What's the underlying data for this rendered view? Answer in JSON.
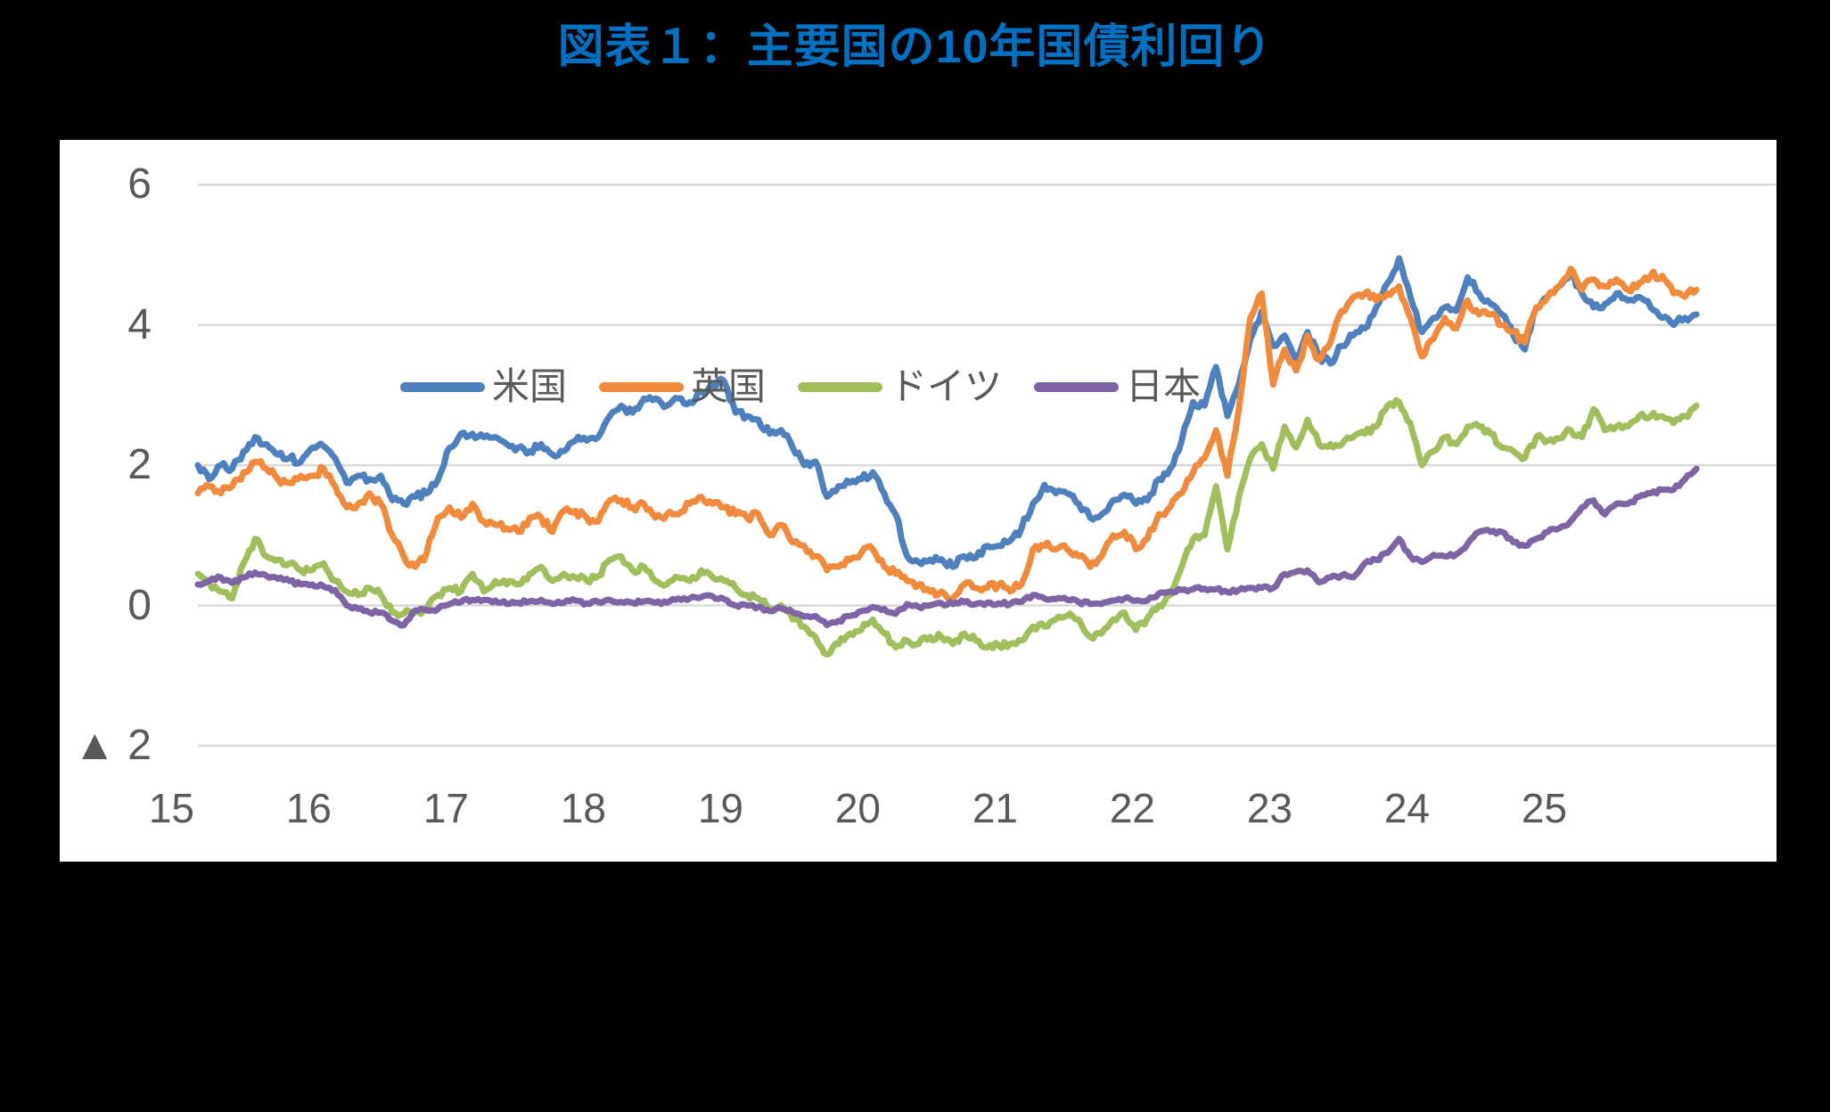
{
  "title": "図表１：主要国の10年国債利回り",
  "title_color": "#0070C0",
  "panel_bg": "#FFFFFF",
  "page_bg": "#000000",
  "gridline_color": "#D9D9D9",
  "axis_text_color": "#595959",
  "negative_marker": "▲",
  "chart_data": {
    "type": "line",
    "title": "図表１：主要国の10年国債利回り",
    "x_unit": "year (monthly points, 2015-01 … 2025-12)",
    "x_tick_labels": [
      "15",
      "16",
      "17",
      "18",
      "19",
      "20",
      "21",
      "22",
      "23",
      "24",
      "25"
    ],
    "y_tick_labels": [
      "6",
      "4",
      "2",
      "0",
      "▲ 2"
    ],
    "y_tick_values": [
      6,
      4,
      2,
      0,
      -2
    ],
    "ylim": [
      -2,
      6
    ],
    "grid": "horizontal-only",
    "legend_position": "top-inside",
    "series": [
      {
        "name": "米国",
        "color": "#4E80BD",
        "values": [
          2.0,
          1.8,
          2.0,
          1.95,
          2.2,
          2.4,
          2.3,
          2.15,
          2.1,
          2.05,
          2.25,
          2.27,
          2.1,
          1.75,
          1.85,
          1.8,
          1.85,
          1.5,
          1.45,
          1.55,
          1.6,
          1.8,
          2.25,
          2.45,
          2.45,
          2.4,
          2.4,
          2.3,
          2.25,
          2.2,
          2.3,
          2.15,
          2.2,
          2.35,
          2.35,
          2.4,
          2.7,
          2.85,
          2.75,
          2.95,
          2.95,
          2.85,
          2.95,
          2.9,
          3.05,
          3.15,
          3.2,
          2.75,
          2.7,
          2.65,
          2.45,
          2.5,
          2.25,
          2.0,
          2.05,
          1.55,
          1.7,
          1.75,
          1.8,
          1.9,
          1.6,
          1.3,
          0.7,
          0.62,
          0.65,
          0.66,
          0.55,
          0.7,
          0.68,
          0.85,
          0.85,
          0.92,
          1.1,
          1.45,
          1.72,
          1.6,
          1.6,
          1.45,
          1.25,
          1.3,
          1.5,
          1.58,
          1.45,
          1.5,
          1.8,
          1.95,
          2.35,
          2.9,
          2.85,
          3.4,
          2.7,
          3.15,
          3.8,
          4.2,
          3.7,
          3.85,
          3.5,
          3.9,
          3.55,
          3.45,
          3.7,
          3.85,
          3.95,
          4.25,
          4.6,
          4.95,
          4.4,
          3.9,
          4.1,
          4.25,
          4.2,
          4.68,
          4.45,
          4.3,
          4.15,
          3.85,
          3.65,
          4.25,
          4.4,
          4.55,
          4.75,
          4.45,
          4.25,
          4.3,
          4.45,
          4.35,
          4.4,
          4.25,
          4.1,
          4.0,
          4.1,
          4.15
        ]
      },
      {
        "name": "英国",
        "color": "#F08A3C",
        "values": [
          1.6,
          1.7,
          1.6,
          1.7,
          1.9,
          2.05,
          1.95,
          1.8,
          1.75,
          1.85,
          1.85,
          1.95,
          1.7,
          1.4,
          1.45,
          1.6,
          1.45,
          1.0,
          0.7,
          0.55,
          0.75,
          1.25,
          1.4,
          1.25,
          1.45,
          1.2,
          1.15,
          1.1,
          1.05,
          1.25,
          1.25,
          1.05,
          1.35,
          1.35,
          1.25,
          1.2,
          1.5,
          1.5,
          1.4,
          1.45,
          1.25,
          1.3,
          1.3,
          1.45,
          1.55,
          1.45,
          1.4,
          1.3,
          1.25,
          1.3,
          1.0,
          1.15,
          0.9,
          0.85,
          0.7,
          0.5,
          0.55,
          0.65,
          0.75,
          0.8,
          0.55,
          0.45,
          0.35,
          0.3,
          0.2,
          0.2,
          0.1,
          0.3,
          0.25,
          0.25,
          0.3,
          0.2,
          0.3,
          0.8,
          0.85,
          0.8,
          0.8,
          0.7,
          0.55,
          0.7,
          1.0,
          1.05,
          0.8,
          0.95,
          1.3,
          1.4,
          1.6,
          1.9,
          2.1,
          2.5,
          1.85,
          2.8,
          4.1,
          4.45,
          3.15,
          3.65,
          3.35,
          3.85,
          3.5,
          3.75,
          4.2,
          4.4,
          4.45,
          4.35,
          4.45,
          4.55,
          4.1,
          3.55,
          3.8,
          4.1,
          3.95,
          4.35,
          4.15,
          4.15,
          4.0,
          3.9,
          3.75,
          4.25,
          4.4,
          4.55,
          4.8,
          4.5,
          4.65,
          4.55,
          4.65,
          4.5,
          4.6,
          4.7,
          4.7,
          4.45,
          4.4,
          4.5
        ]
      },
      {
        "name": "ドイツ",
        "color": "#A0BF5C",
        "values": [
          0.45,
          0.32,
          0.2,
          0.1,
          0.6,
          0.95,
          0.7,
          0.65,
          0.6,
          0.5,
          0.5,
          0.6,
          0.35,
          0.2,
          0.15,
          0.25,
          0.15,
          -0.1,
          -0.12,
          -0.1,
          -0.05,
          0.15,
          0.25,
          0.2,
          0.45,
          0.2,
          0.35,
          0.3,
          0.3,
          0.45,
          0.55,
          0.35,
          0.45,
          0.4,
          0.35,
          0.42,
          0.65,
          0.7,
          0.5,
          0.55,
          0.35,
          0.3,
          0.4,
          0.35,
          0.5,
          0.4,
          0.35,
          0.25,
          0.15,
          0.1,
          -0.05,
          0.0,
          -0.2,
          -0.3,
          -0.45,
          -0.7,
          -0.55,
          -0.4,
          -0.35,
          -0.2,
          -0.4,
          -0.6,
          -0.5,
          -0.55,
          -0.45,
          -0.45,
          -0.55,
          -0.4,
          -0.5,
          -0.6,
          -0.57,
          -0.55,
          -0.5,
          -0.3,
          -0.3,
          -0.2,
          -0.15,
          -0.2,
          -0.45,
          -0.4,
          -0.2,
          -0.1,
          -0.35,
          -0.18,
          0.0,
          0.15,
          0.55,
          0.95,
          1.0,
          1.7,
          0.8,
          1.55,
          2.1,
          2.3,
          1.95,
          2.55,
          2.25,
          2.65,
          2.3,
          2.3,
          2.3,
          2.4,
          2.45,
          2.55,
          2.85,
          2.9,
          2.6,
          2.0,
          2.2,
          2.4,
          2.3,
          2.55,
          2.55,
          2.45,
          2.25,
          2.2,
          2.1,
          2.4,
          2.35,
          2.38,
          2.5,
          2.4,
          2.8,
          2.5,
          2.55,
          2.55,
          2.7,
          2.7,
          2.7,
          2.6,
          2.7,
          2.85
        ]
      },
      {
        "name": "日本",
        "color": "#7E63A5",
        "values": [
          0.3,
          0.35,
          0.4,
          0.32,
          0.4,
          0.47,
          0.42,
          0.38,
          0.35,
          0.3,
          0.3,
          0.27,
          0.22,
          0.0,
          -0.05,
          -0.1,
          -0.1,
          -0.22,
          -0.28,
          -0.07,
          -0.07,
          -0.05,
          0.02,
          0.05,
          0.08,
          0.08,
          0.07,
          0.02,
          0.04,
          0.06,
          0.08,
          0.02,
          0.04,
          0.07,
          0.03,
          0.05,
          0.08,
          0.05,
          0.04,
          0.06,
          0.04,
          0.04,
          0.1,
          0.1,
          0.12,
          0.13,
          0.09,
          0.0,
          0.0,
          -0.02,
          -0.08,
          -0.04,
          -0.1,
          -0.16,
          -0.15,
          -0.28,
          -0.22,
          -0.15,
          -0.08,
          -0.02,
          -0.05,
          -0.12,
          0.02,
          -0.02,
          0.0,
          0.03,
          0.02,
          0.05,
          0.02,
          0.04,
          0.03,
          0.02,
          0.05,
          0.15,
          0.1,
          0.09,
          0.08,
          0.05,
          0.02,
          0.02,
          0.07,
          0.1,
          0.07,
          0.07,
          0.17,
          0.2,
          0.22,
          0.23,
          0.24,
          0.23,
          0.19,
          0.22,
          0.25,
          0.25,
          0.25,
          0.45,
          0.48,
          0.5,
          0.33,
          0.4,
          0.43,
          0.4,
          0.6,
          0.65,
          0.75,
          0.95,
          0.7,
          0.62,
          0.72,
          0.7,
          0.73,
          0.88,
          1.05,
          1.05,
          1.05,
          0.9,
          0.85,
          0.95,
          1.05,
          1.1,
          1.2,
          1.4,
          1.5,
          1.3,
          1.45,
          1.45,
          1.55,
          1.6,
          1.65,
          1.65,
          1.8,
          1.95
        ]
      }
    ]
  }
}
